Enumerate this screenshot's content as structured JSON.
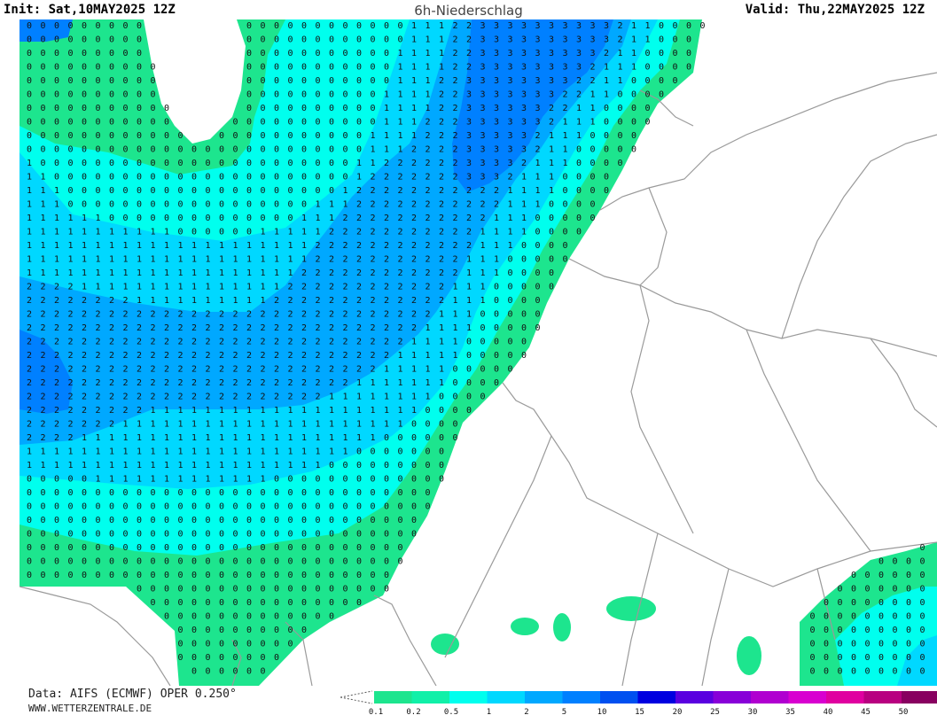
{
  "header": {
    "init": "Init: Sat,10MAY2025 12Z",
    "title": "6h-Niederschlag",
    "valid": "Valid: Thu,22MAY2025 12Z"
  },
  "footer": {
    "data_source": "Data: AIFS (ECMWF) OPER 0.250°",
    "website": "WWW.WETTERZENTRALE.DE"
  },
  "legend": {
    "labels": [
      "0.1",
      "0.2",
      "0.5",
      "1",
      "2",
      "5",
      "10",
      "15",
      "20",
      "25",
      "30",
      "35",
      "40",
      "45",
      "50"
    ],
    "colors": [
      "#1de58e",
      "#10f0a8",
      "#00ffee",
      "#00d8ff",
      "#00a8ff",
      "#0080ff",
      "#0050f0",
      "#0000e0",
      "#5a00e0",
      "#8800d8",
      "#b000d0",
      "#d800d0",
      "#e000a0",
      "#b80080",
      "#880060"
    ],
    "colors_note_labels": [
      "0.1-0.2",
      "0.2-0.5",
      "0.5-1",
      "1-2",
      "2-5",
      "5-10",
      "10-15",
      "15-20",
      "20-25",
      "25-30",
      "30-35",
      "35-40",
      "40-45",
      "45-50",
      "50+"
    ]
  },
  "precip_colors": {
    "l1": "#1de58e",
    "l2": "#00ffee",
    "l3": "#00d8ff",
    "l4": "#00a8ff",
    "l5": "#0080ff"
  }
}
